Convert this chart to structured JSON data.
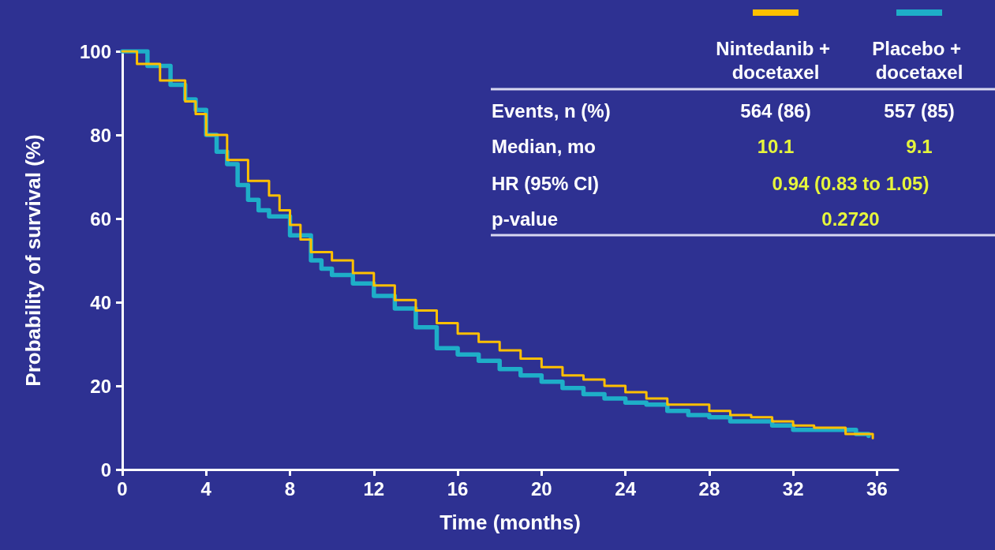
{
  "chart_data": {
    "type": "step",
    "xlabel": "Time (months)",
    "ylabel": "Probability of survival (%)",
    "xlim": [
      0,
      37
    ],
    "xticks": [
      0,
      4,
      8,
      12,
      16,
      20,
      24,
      28,
      32,
      36
    ],
    "ylim": [
      0,
      100
    ],
    "yticks": [
      0,
      20,
      40,
      60,
      80,
      100
    ],
    "grid": false,
    "legend": "top right",
    "marker": "none",
    "line_style": "solid",
    "annotations": [
      "Events, n (%)",
      "564 (86)",
      "557 (85)",
      "Median, mo",
      "10.1",
      "9.1",
      "HR (95% CI)",
      "0.94 (0.83 to 1.05)",
      "p-value",
      "0.2720"
    ],
    "series": [
      {
        "name": "Nintedanib + docetaxel",
        "color": "#ffc000",
        "x": [
          0,
          0.7,
          1.8,
          3,
          3.5,
          4,
          5,
          6,
          7,
          7.5,
          8,
          8.5,
          9,
          10,
          11,
          12,
          13,
          14,
          15,
          16,
          17,
          18,
          19,
          20,
          21,
          22,
          23,
          24,
          25,
          26,
          27,
          28,
          29,
          30,
          31,
          32,
          33,
          34,
          34.5,
          35,
          35.8
        ],
        "values": [
          100,
          97,
          93,
          88,
          85,
          80,
          74,
          69,
          65.5,
          62,
          58.5,
          55,
          52,
          50,
          47,
          44,
          40.5,
          38,
          35,
          32.5,
          30.5,
          28.5,
          26.5,
          24.5,
          22.5,
          21.5,
          20,
          18.5,
          17,
          15.5,
          15.5,
          14,
          13,
          12.5,
          11.5,
          10.5,
          10,
          10,
          8.5,
          8.5,
          7.5
        ]
      },
      {
        "name": "Placebo + docetaxel",
        "color": "#1eaec8",
        "x": [
          0,
          1.2,
          2.3,
          3,
          3.5,
          4,
          4.5,
          5,
          5.5,
          6,
          6.5,
          7,
          8,
          9,
          9.5,
          10,
          11,
          12,
          13,
          14,
          15,
          16,
          17,
          18,
          19,
          20,
          21,
          22,
          23,
          24,
          25,
          26,
          27,
          28,
          29,
          30,
          31,
          32,
          33,
          34,
          35,
          35.6
        ],
        "values": [
          100,
          96.5,
          92,
          88.5,
          86,
          80,
          76,
          73,
          68,
          64.5,
          62,
          60.5,
          56,
          50,
          48,
          46.5,
          44.5,
          41.5,
          38.5,
          34,
          29,
          27.5,
          26,
          24,
          22.5,
          21,
          19.5,
          18,
          17,
          16,
          15.5,
          14,
          13,
          12.5,
          11.5,
          11.5,
          10.5,
          9.5,
          9.5,
          9.5,
          8.5,
          8
        ]
      }
    ]
  }
}
